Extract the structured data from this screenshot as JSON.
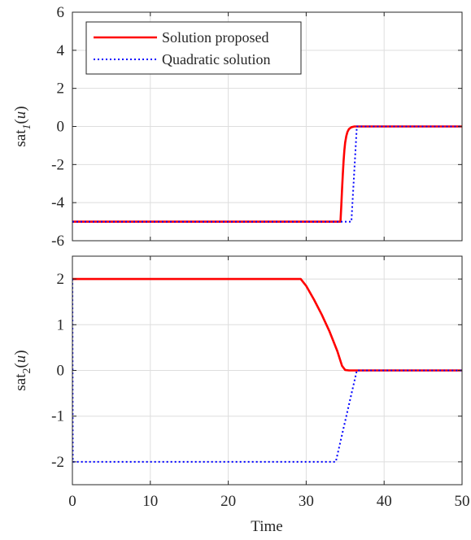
{
  "colors": {
    "background": "#ffffff",
    "grid": "#dedede",
    "axis": "#262626",
    "series_solution": "#ff0000",
    "series_quadratic": "#0000ff"
  },
  "chart_data": [
    {
      "type": "line",
      "ylabel": "sat_1(u)",
      "ylabel_parts": {
        "base": "sat",
        "sub": "1",
        "arg": "(u)"
      },
      "xlabel": "",
      "xlim": [
        0,
        50
      ],
      "ylim": [
        -6,
        6
      ],
      "grid": true,
      "legend_position": "top-left",
      "x_ticks": [
        0,
        10,
        20,
        30,
        40,
        50
      ],
      "x_tick_labels_shown": false,
      "y_ticks": [
        -6,
        -4,
        -2,
        0,
        2,
        4,
        6
      ],
      "y_tick_labels": [
        "-6",
        "-4",
        "-2",
        "0",
        "2",
        "4",
        "6"
      ],
      "series": [
        {
          "name": "Solution proposed",
          "style": "solid",
          "color": "#ff0000",
          "points": [
            [
              0,
              -5
            ],
            [
              34.4,
              -5
            ],
            [
              34.5,
              -4.2
            ],
            [
              34.6,
              -3.3
            ],
            [
              34.7,
              -2.5
            ],
            [
              34.8,
              -1.8
            ],
            [
              34.9,
              -1.25
            ],
            [
              35.0,
              -0.85
            ],
            [
              35.15,
              -0.5
            ],
            [
              35.3,
              -0.28
            ],
            [
              35.5,
              -0.13
            ],
            [
              35.8,
              -0.04
            ],
            [
              36.2,
              0
            ],
            [
              50,
              0
            ]
          ]
        },
        {
          "name": "Quadratic solution",
          "style": "dotted",
          "color": "#0000ff",
          "points": [
            [
              0,
              -5
            ],
            [
              35.8,
              -5
            ],
            [
              36.5,
              0
            ],
            [
              50,
              0
            ]
          ]
        }
      ]
    },
    {
      "type": "line",
      "ylabel": "sat_2(u)",
      "ylabel_parts": {
        "base": "sat",
        "sub": "2",
        "arg": "(u)"
      },
      "xlabel": "Time",
      "xlim": [
        0,
        50
      ],
      "ylim": [
        -2.5,
        2.5
      ],
      "grid": true,
      "x_ticks": [
        0,
        10,
        20,
        30,
        40,
        50
      ],
      "x_tick_labels": [
        "0",
        "10",
        "20",
        "30",
        "40",
        "50"
      ],
      "y_ticks": [
        -2,
        -1,
        0,
        1,
        2
      ],
      "y_tick_labels": [
        "-2",
        "-1",
        "0",
        "1",
        "2"
      ],
      "series": [
        {
          "name": "Solution proposed",
          "style": "solid",
          "color": "#ff0000",
          "points": [
            [
              0,
              2
            ],
            [
              29.3,
              2
            ],
            [
              30.0,
              1.85
            ],
            [
              31.0,
              1.55
            ],
            [
              32.0,
              1.22
            ],
            [
              33.0,
              0.85
            ],
            [
              34.0,
              0.42
            ],
            [
              34.6,
              0.1
            ],
            [
              35.0,
              0.01
            ],
            [
              35.5,
              0
            ],
            [
              50,
              0
            ]
          ]
        },
        {
          "name": "Quadratic solution",
          "style": "dotted",
          "color": "#0000ff",
          "points": [
            [
              0,
              2
            ],
            [
              0.05,
              -2
            ],
            [
              33.8,
              -2
            ],
            [
              36.5,
              0
            ],
            [
              50,
              0
            ]
          ]
        }
      ]
    }
  ]
}
